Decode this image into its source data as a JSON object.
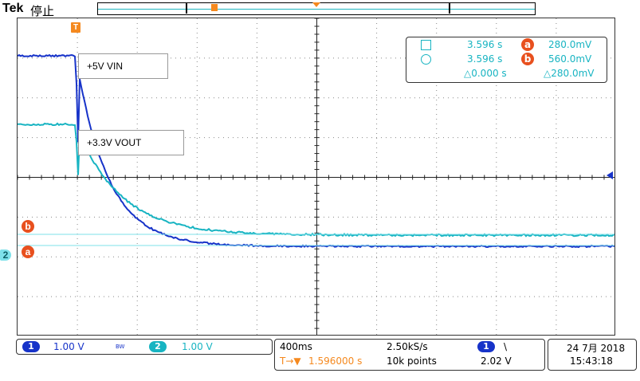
{
  "header": {
    "brand": "Tek",
    "state": "停止",
    "trigger_marker": "T"
  },
  "waveforms": {
    "ch1_label": "+5V VIN",
    "ch2_label": "+3.3V VOUT",
    "ch1_color": "#1733c9",
    "ch2_color": "#18b4c2",
    "ch2_marker": "2"
  },
  "cursors": {
    "a_label": "a",
    "b_label": "b",
    "color": "#e8501e"
  },
  "readout": {
    "row1_time": "3.596 s",
    "row1_value": "280.0mV",
    "row2_time": "3.596 s",
    "row2_value": "560.0mV",
    "delta_time": "△0.000 s",
    "delta_value": "△280.0mV",
    "badge_a": "a",
    "badge_b": "b"
  },
  "channels": {
    "ch1_num": "1",
    "ch1_scale": "1.00 V",
    "bw_flag": "BW",
    "ch2_num": "2",
    "ch2_scale": "1.00 V"
  },
  "acquisition": {
    "timebase": "400ms",
    "sample_rate": "2.50kS/s",
    "trigger_offset": "1.596000 s",
    "trigger_arrow": "T→▼",
    "record_length": "10k points",
    "trigger_source": "1",
    "trigger_slope": "\\",
    "trigger_level": "2.02 V"
  },
  "datetime": {
    "date": "24 7月 2018",
    "time": "15:43:18"
  }
}
